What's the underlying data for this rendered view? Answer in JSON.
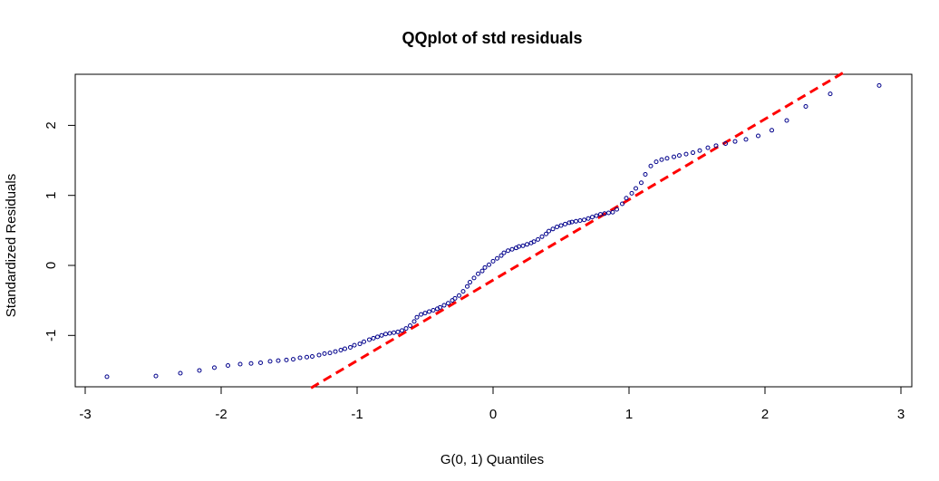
{
  "chart_data": {
    "type": "scatter",
    "title": "QQplot of std residuals",
    "xlabel": "G(0, 1) Quantiles",
    "ylabel": "Standardized Residuals",
    "xlim": [
      -3.0,
      3.0
    ],
    "ylim": [
      -1.75,
      2.75
    ],
    "x_ticks": [
      -3,
      -2,
      -1,
      0,
      1,
      2,
      3
    ],
    "y_ticks": [
      -1,
      0,
      1,
      2
    ],
    "grid": false,
    "point_color": "#00008b",
    "reference_line": {
      "color": "#ff0000",
      "style": "dashed",
      "slope": 1.15,
      "intercept": -0.21
    },
    "points": [
      [
        -2.84,
        -1.59
      ],
      [
        -2.48,
        -1.58
      ],
      [
        -2.3,
        -1.54
      ],
      [
        -2.16,
        -1.5
      ],
      [
        -2.05,
        -1.46
      ],
      [
        -1.95,
        -1.43
      ],
      [
        -1.86,
        -1.41
      ],
      [
        -1.78,
        -1.4
      ],
      [
        -1.71,
        -1.39
      ],
      [
        -1.64,
        -1.37
      ],
      [
        -1.58,
        -1.36
      ],
      [
        -1.52,
        -1.35
      ],
      [
        -1.47,
        -1.34
      ],
      [
        -1.42,
        -1.32
      ],
      [
        -1.37,
        -1.31
      ],
      [
        -1.33,
        -1.3
      ],
      [
        -1.28,
        -1.28
      ],
      [
        -1.24,
        -1.26
      ],
      [
        -1.2,
        -1.25
      ],
      [
        -1.16,
        -1.23
      ],
      [
        -1.12,
        -1.21
      ],
      [
        -1.09,
        -1.19
      ],
      [
        -1.05,
        -1.17
      ],
      [
        -1.02,
        -1.14
      ],
      [
        -0.98,
        -1.12
      ],
      [
        -0.95,
        -1.09
      ],
      [
        -0.91,
        -1.06
      ],
      [
        -0.88,
        -1.04
      ],
      [
        -0.85,
        -1.02
      ],
      [
        -0.82,
        -1.0
      ],
      [
        -0.79,
        -0.98
      ],
      [
        -0.76,
        -0.97
      ],
      [
        -0.73,
        -0.96
      ],
      [
        -0.7,
        -0.95
      ],
      [
        -0.67,
        -0.93
      ],
      [
        -0.64,
        -0.9
      ],
      [
        -0.61,
        -0.86
      ],
      [
        -0.58,
        -0.8
      ],
      [
        -0.56,
        -0.74
      ],
      [
        -0.53,
        -0.7
      ],
      [
        -0.5,
        -0.68
      ],
      [
        -0.47,
        -0.66
      ],
      [
        -0.44,
        -0.64
      ],
      [
        -0.41,
        -0.62
      ],
      [
        -0.39,
        -0.6
      ],
      [
        -0.36,
        -0.57
      ],
      [
        -0.33,
        -0.54
      ],
      [
        -0.3,
        -0.5
      ],
      [
        -0.28,
        -0.47
      ],
      [
        -0.25,
        -0.43
      ],
      [
        -0.22,
        -0.37
      ],
      [
        -0.19,
        -0.3
      ],
      [
        -0.17,
        -0.24
      ],
      [
        -0.14,
        -0.18
      ],
      [
        -0.11,
        -0.12
      ],
      [
        -0.08,
        -0.08
      ],
      [
        -0.06,
        -0.03
      ],
      [
        -0.03,
        0.01
      ],
      [
        0.0,
        0.06
      ],
      [
        0.03,
        0.1
      ],
      [
        0.06,
        0.14
      ],
      [
        0.08,
        0.18
      ],
      [
        0.11,
        0.21
      ],
      [
        0.14,
        0.23
      ],
      [
        0.17,
        0.25
      ],
      [
        0.19,
        0.27
      ],
      [
        0.22,
        0.28
      ],
      [
        0.25,
        0.3
      ],
      [
        0.28,
        0.32
      ],
      [
        0.3,
        0.34
      ],
      [
        0.33,
        0.37
      ],
      [
        0.36,
        0.41
      ],
      [
        0.39,
        0.45
      ],
      [
        0.41,
        0.49
      ],
      [
        0.44,
        0.52
      ],
      [
        0.47,
        0.55
      ],
      [
        0.5,
        0.57
      ],
      [
        0.53,
        0.59
      ],
      [
        0.56,
        0.61
      ],
      [
        0.58,
        0.62
      ],
      [
        0.61,
        0.63
      ],
      [
        0.64,
        0.64
      ],
      [
        0.67,
        0.65
      ],
      [
        0.7,
        0.67
      ],
      [
        0.73,
        0.69
      ],
      [
        0.76,
        0.71
      ],
      [
        0.79,
        0.73
      ],
      [
        0.82,
        0.74
      ],
      [
        0.85,
        0.75
      ],
      [
        0.88,
        0.76
      ],
      [
        0.91,
        0.8
      ],
      [
        0.95,
        0.88
      ],
      [
        0.98,
        0.96
      ],
      [
        1.02,
        1.03
      ],
      [
        1.05,
        1.1
      ],
      [
        1.09,
        1.18
      ],
      [
        1.12,
        1.3
      ],
      [
        1.16,
        1.42
      ],
      [
        1.2,
        1.48
      ],
      [
        1.24,
        1.51
      ],
      [
        1.28,
        1.53
      ],
      [
        1.33,
        1.55
      ],
      [
        1.37,
        1.57
      ],
      [
        1.42,
        1.59
      ],
      [
        1.47,
        1.61
      ],
      [
        1.52,
        1.64
      ],
      [
        1.58,
        1.68
      ],
      [
        1.64,
        1.71
      ],
      [
        1.71,
        1.74
      ],
      [
        1.78,
        1.77
      ],
      [
        1.86,
        1.8
      ],
      [
        1.95,
        1.85
      ],
      [
        2.05,
        1.93
      ],
      [
        2.16,
        2.07
      ],
      [
        2.3,
        2.27
      ],
      [
        2.48,
        2.45
      ],
      [
        2.84,
        2.57
      ]
    ]
  }
}
